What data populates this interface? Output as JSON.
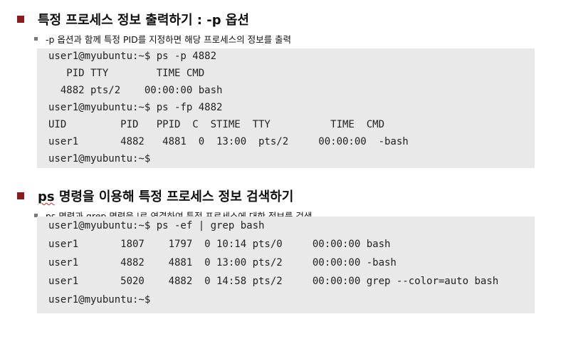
{
  "section1": {
    "heading": "특정 프로세스 정보 출력하기 : -p 옵션",
    "subtext": "-p 옵션과 함께 특정 PID를 지정하면 해당 프로세스의 정보를 출력",
    "terminal_lines": [
      "user1@myubuntu:~$ ps -p 4882",
      "   PID TTY        TIME CMD",
      "  4882 pts/2    00:00:00 bash",
      "user1@myubuntu:~$ ps -fp 4882",
      "UID         PID   PPID  C  STIME  TTY          TIME  CMD",
      "user1       4882   4881  0  13:00  pts/2     00:00:00  -bash",
      "user1@myubuntu:~$"
    ]
  },
  "section2": {
    "heading_word": "ps",
    "heading_rest": " 명령을 이용해 특정 프로세스 정보 검색하기",
    "sub_word1": "ps",
    "sub_mid": " 명령과 ",
    "sub_word2": "grep",
    "sub_rest": " 명령을 |로 연결하여 특정 프로세스에 대한 정보를 검색",
    "terminal_lines": [
      "user1@myubuntu:~$ ps -ef | grep bash",
      "user1       1807    1797  0 10:14 pts/0     00:00:00 bash",
      "user1       4882    4881  0 13:00 pts/2     00:00:00 -bash",
      "user1       5020    4882  0 14:58 pts/2     00:00:00 grep --color=auto bash",
      "user1@myubuntu:~$"
    ]
  },
  "colors": {
    "bullet": "#8b1a1a",
    "terminal_bg": "#e9e9e9"
  }
}
